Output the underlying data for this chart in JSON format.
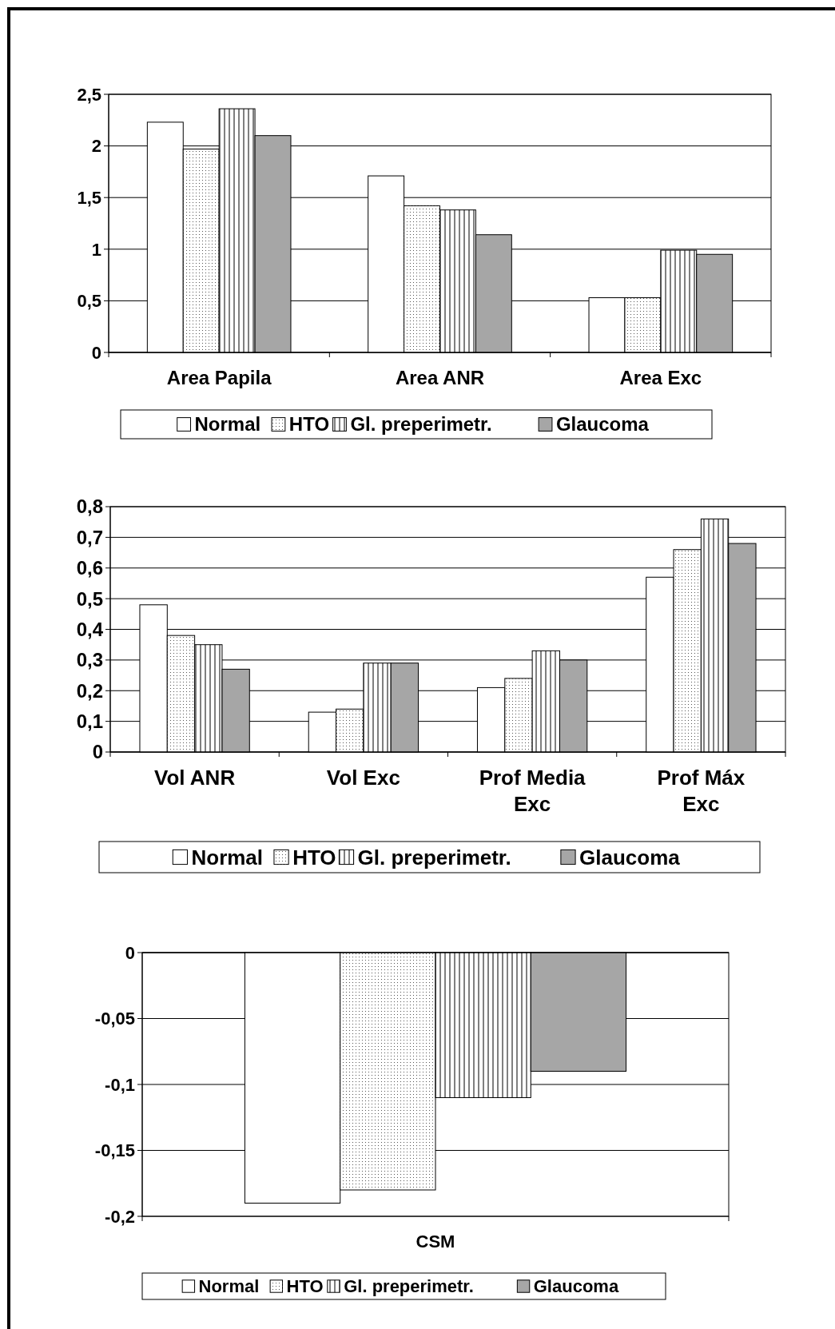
{
  "chart_data": [
    {
      "type": "bar",
      "categories": [
        "Area Papila",
        "Area ANR",
        "Area Exc"
      ],
      "series": [
        {
          "name": "Normal",
          "color": "#ffffff",
          "values": [
            2.23,
            1.71,
            0.53
          ]
        },
        {
          "name": "HTO",
          "color": "#ffffff",
          "values": [
            1.97,
            1.42,
            0.53
          ]
        },
        {
          "name": "Gl. preperimetr.",
          "color": "#ffffff",
          "values": [
            2.36,
            1.38,
            0.99
          ]
        },
        {
          "name": "Glaucoma",
          "color": "#a6a6a6",
          "values": [
            2.1,
            1.14,
            0.95
          ]
        }
      ],
      "ylim": [
        0,
        2.5
      ],
      "yticks": [
        0,
        {
          "value": 0.5,
          "label": "0,5"
        },
        1,
        {
          "value": 1.5,
          "label": "1,5"
        },
        2,
        {
          "value": 2.5,
          "label": "2,5"
        }
      ],
      "grid": "y",
      "legend": "bottom"
    },
    {
      "type": "bar",
      "categories": [
        "Vol ANR",
        "Vol Exc",
        "Prof Media Exc",
        "Prof Máx Exc"
      ],
      "series": [
        {
          "name": "Normal",
          "color": "#ffffff",
          "values": [
            0.48,
            0.13,
            0.21,
            0.57
          ]
        },
        {
          "name": "HTO",
          "color": "#ffffff",
          "values": [
            0.38,
            0.14,
            0.24,
            0.66
          ]
        },
        {
          "name": "Gl. preperimetr.",
          "color": "#ffffff",
          "values": [
            0.35,
            0.29,
            0.33,
            0.76
          ]
        },
        {
          "name": "Glaucoma",
          "color": "#a6a6a6",
          "values": [
            0.27,
            0.29,
            0.3,
            0.68
          ]
        }
      ],
      "ylim": [
        0,
        0.8
      ],
      "yticks": [
        0,
        {
          "value": 0.1,
          "label": "0,1"
        },
        {
          "value": 0.2,
          "label": "0,2"
        },
        {
          "value": 0.3,
          "label": "0,3"
        },
        {
          "value": 0.4,
          "label": "0,4"
        },
        {
          "value": 0.5,
          "label": "0,5"
        },
        {
          "value": 0.6,
          "label": "0,6"
        },
        {
          "value": 0.7,
          "label": "0,7"
        },
        {
          "value": 0.8,
          "label": "0,8"
        }
      ],
      "grid": "y",
      "legend": "bottom"
    },
    {
      "type": "bar",
      "categories": [
        "CSM"
      ],
      "series": [
        {
          "name": "Normal",
          "color": "#ffffff",
          "values": [
            -0.19
          ]
        },
        {
          "name": "HTO",
          "color": "#ffffff",
          "values": [
            -0.18
          ]
        },
        {
          "name": "Gl. preperimetr.",
          "color": "#ffffff",
          "values": [
            -0.11
          ]
        },
        {
          "name": "Glaucoma",
          "color": "#a6a6a6",
          "values": [
            -0.09
          ]
        }
      ],
      "ylim": [
        -0.2,
        0
      ],
      "yticks": [
        {
          "value": -0.2,
          "label": "-0,2"
        },
        {
          "value": -0.15,
          "label": "-0,15"
        },
        {
          "value": -0.1,
          "label": "-0,1"
        },
        {
          "value": -0.05,
          "label": "-0,05"
        },
        0
      ],
      "grid": "y",
      "legend": "bottom"
    }
  ]
}
